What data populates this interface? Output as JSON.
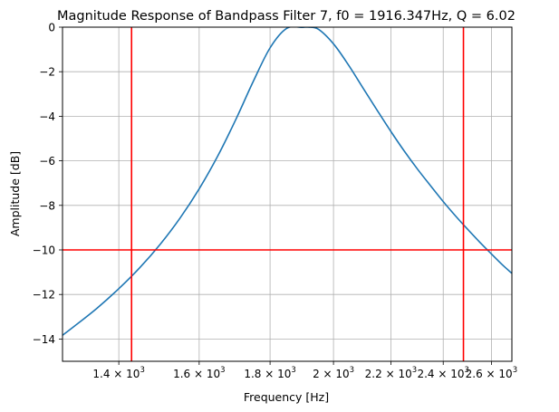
{
  "chart_data": {
    "type": "line",
    "title": "Magnitude Response of Bandpass Filter 7, f0 = 1916.347Hz, Q = 6.02",
    "xlabel": "Frequency [Hz]",
    "ylabel": "Amplitude [dB]",
    "xscale": "log",
    "xlim": [
      1275,
      2690
    ],
    "ylim": [
      -15,
      0
    ],
    "grid": true,
    "x_ticks": [
      1400,
      1600,
      1800,
      2000,
      2200,
      2400,
      2600
    ],
    "x_tick_labels": [
      {
        "base": "1.4 × 10",
        "exp": "3"
      },
      {
        "base": "1.6 × 10",
        "exp": "3"
      },
      {
        "base": "1.8 × 10",
        "exp": "3"
      },
      {
        "base": "2 × 10",
        "exp": "3"
      },
      {
        "base": "2.2 × 10",
        "exp": "3"
      },
      {
        "base": "2.4 × 10",
        "exp": "3"
      },
      {
        "base": "2.6 × 10",
        "exp": "3"
      }
    ],
    "y_ticks": [
      0,
      -2,
      -4,
      -6,
      -8,
      -10,
      -12,
      -14
    ],
    "y_tick_labels": [
      "0",
      "−2",
      "−4",
      "−6",
      "−8",
      "−10",
      "−12",
      "−14"
    ],
    "series": [
      {
        "color": "#1f77b4",
        "x": [
          1275,
          1300,
          1350,
          1400,
          1450,
          1500,
          1550,
          1600,
          1650,
          1700,
          1750,
          1800,
          1850,
          1900,
          1916.347,
          1950,
          2000,
          2050,
          2100,
          2150,
          2200,
          2250,
          2300,
          2350,
          2400,
          2450,
          2500,
          2550,
          2600,
          2650,
          2690
        ],
        "y": [
          -13.83,
          -13.43,
          -12.62,
          -11.74,
          -10.79,
          -9.74,
          -8.57,
          -7.26,
          -5.79,
          -4.16,
          -2.45,
          -0.93,
          -0.06,
          -0.01,
          0.0,
          -0.09,
          -0.75,
          -1.69,
          -2.72,
          -3.72,
          -4.68,
          -5.57,
          -6.38,
          -7.12,
          -7.83,
          -8.48,
          -9.08,
          -9.65,
          -10.18,
          -10.69,
          -11.05
        ]
      }
    ],
    "hlines": [
      {
        "y": -10,
        "color": "#ff0000"
      }
    ],
    "vlines": [
      {
        "x": 1430,
        "color": "#ff0000"
      },
      {
        "x": 2482,
        "color": "#ff0000"
      }
    ]
  }
}
